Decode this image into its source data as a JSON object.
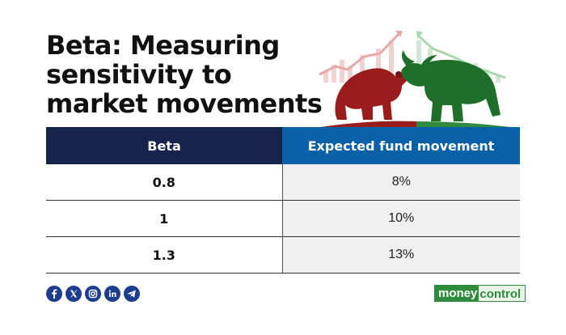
{
  "title": {
    "line1": "Beta: Measuring",
    "line2": "sensitivity to",
    "line3": "market movements"
  },
  "table": {
    "headers": [
      "Beta",
      "Expected fund movement"
    ],
    "rows": [
      {
        "beta": "0.8",
        "movement": "8%"
      },
      {
        "beta": "1",
        "movement": "10%"
      },
      {
        "beta": "1.3",
        "movement": "13%"
      }
    ]
  },
  "colors": {
    "header_dark": "#17234a",
    "header_blue": "#0a61a8",
    "bear": "#9b1c1c",
    "bull": "#1f6e2a",
    "brand_green": "#2e8b3d"
  },
  "illustration": {
    "left_icon": "bear-icon",
    "right_icon": "bull-icon"
  },
  "social_icons": [
    "facebook-icon",
    "x-icon",
    "instagram-icon",
    "linkedin-icon",
    "telegram-icon"
  ],
  "brand": {
    "part1": "money",
    "part2": "control"
  }
}
